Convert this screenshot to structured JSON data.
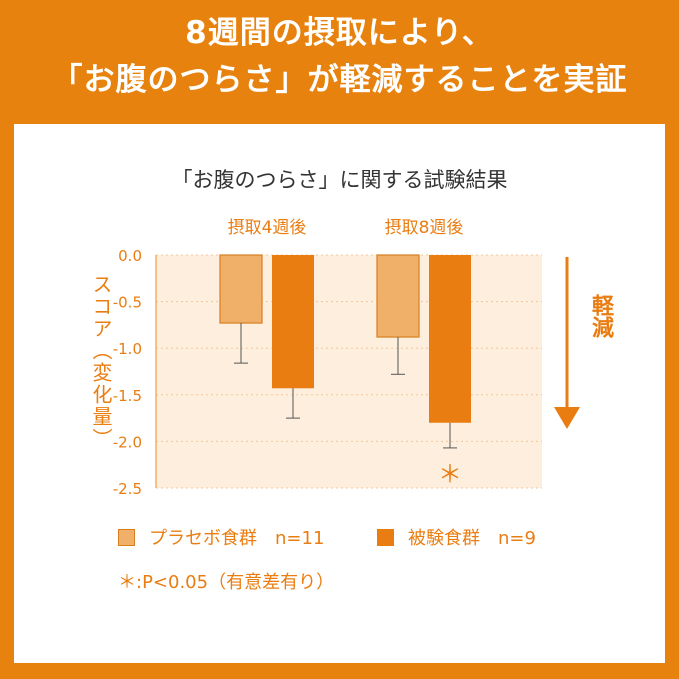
{
  "headline": {
    "line1": "8週間の摂取により、",
    "line2": "「お腹のつらさ」が軽減することを実証"
  },
  "chart_data": {
    "type": "bar",
    "title": "「お腹のつらさ」に関する試験結果",
    "categories": [
      "摂取4週後",
      "摂取8週後"
    ],
    "series": [
      {
        "name": "プラセボ食群　n=11",
        "values": [
          -0.73,
          -0.88
        ],
        "error": [
          0.43,
          0.4
        ],
        "color": "#f0b06a"
      },
      {
        "name": "被験食群　n=9",
        "values": [
          -1.43,
          -1.8
        ],
        "error": [
          0.32,
          0.27
        ],
        "color": "#ea7d12"
      }
    ],
    "ylabel": "スコア（変化量）",
    "ylim": [
      -2.5,
      0
    ],
    "yticks": [
      "0.0",
      "-0.5",
      "-1.0",
      "-1.5",
      "-2.0",
      "-2.5"
    ],
    "significance": [
      "",
      "＊"
    ],
    "trend_label": "軽減",
    "footnote": "＊:P<0.05（有意差有り）",
    "colors": {
      "placebo": "#f0b06a",
      "test": "#ea7d12",
      "plot_bg": "#fdeedd",
      "axis": "#f0b06a"
    }
  }
}
